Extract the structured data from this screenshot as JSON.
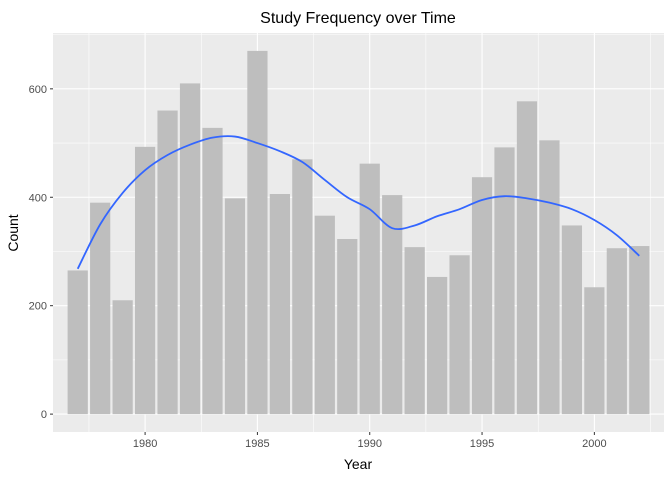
{
  "chart_data": {
    "type": "bar",
    "title": "Study Frequency over Time",
    "xlabel": "Year",
    "ylabel": "Count",
    "x": [
      1977,
      1978,
      1979,
      1980,
      1981,
      1982,
      1983,
      1984,
      1985,
      1986,
      1987,
      1988,
      1989,
      1990,
      1991,
      1992,
      1993,
      1994,
      1995,
      1996,
      1997,
      1998,
      1999,
      2000,
      2001,
      2002
    ],
    "values": [
      265,
      390,
      210,
      493,
      560,
      610,
      528,
      398,
      670,
      406,
      470,
      366,
      323,
      462,
      404,
      308,
      253,
      293,
      437,
      492,
      577,
      505,
      348,
      234,
      306,
      310
    ],
    "smooth": {
      "x": [
        1977,
        1978,
        1979,
        1980,
        1981,
        1982,
        1983,
        1984,
        1985,
        1986,
        1987,
        1988,
        1989,
        1990,
        1991,
        1992,
        1993,
        1994,
        1995,
        1996,
        1997,
        1998,
        1999,
        2000,
        2001,
        2002
      ],
      "y": [
        268,
        350,
        408,
        450,
        478,
        497,
        510,
        512,
        500,
        485,
        465,
        432,
        400,
        378,
        343,
        348,
        365,
        378,
        395,
        402,
        398,
        390,
        378,
        358,
        330,
        292
      ]
    },
    "xlim": [
      1975.9,
      2003.1
    ],
    "ylim": [
      -33,
      703
    ],
    "xticks": [
      1980,
      1985,
      1990,
      1995,
      2000
    ],
    "yticks": [
      0,
      200,
      400,
      600
    ],
    "grid": true,
    "colors": {
      "panel": "#EBEBEB",
      "grid": "#FFFFFF",
      "bar": "#BEBEBE",
      "smooth": "#3366FF"
    }
  }
}
